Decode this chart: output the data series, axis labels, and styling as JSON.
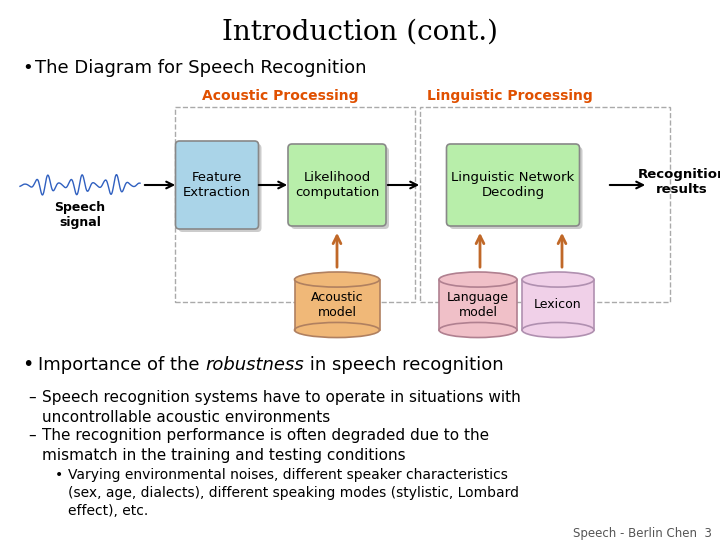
{
  "title": "Introduction (cont.)",
  "bullet1": "The Diagram for Speech Recognition",
  "acoustic_label": "Acoustic Processing",
  "linguistic_label": "Linguistic Processing",
  "speech_signal_label": "Speech\nsignal",
  "recognition_results_label": "Recognition\nresults",
  "feature_extraction_label": "Feature\nExtraction",
  "likelihood_label": "Likelihood\ncomputation",
  "linguistic_network_label": "Linguistic Network\nDecoding",
  "acoustic_model_label": "Acoustic\nmodel",
  "language_model_label": "Language\nmodel",
  "lexicon_label": "Lexicon",
  "bullet2_pre": "Importance of the ",
  "bullet2_italic": "robustness",
  "bullet2_post": " in speech recognition",
  "dash1": "Speech recognition systems have to operate in situations with\nuncontrollable acoustic environments",
  "dash2": "The recognition performance is often degraded due to the\nmismatch in the training and testing conditions",
  "bullet3": "Varying environmental noises, different speaker characteristics\n(sex, age, dialects), different speaking modes (stylistic, Lombard\neffect), etc.",
  "footer": "Speech - Berlin Chen  3",
  "bg_color": "#ffffff",
  "title_color": "#000000",
  "orange_color": "#e05000",
  "feature_box_color": "#aad4e8",
  "likelihood_box_color": "#b8eeaa",
  "linguistic_network_box_color": "#b8eeaa",
  "acoustic_model_color": "#f0b878",
  "language_model_color": "#f0c0c8",
  "lexicon_color": "#f0d0e8",
  "shadow_color": "#cccccc",
  "arrow_color": "#c06828",
  "diagram_border": "#aaaaaa",
  "wave_color": "#3060c0"
}
